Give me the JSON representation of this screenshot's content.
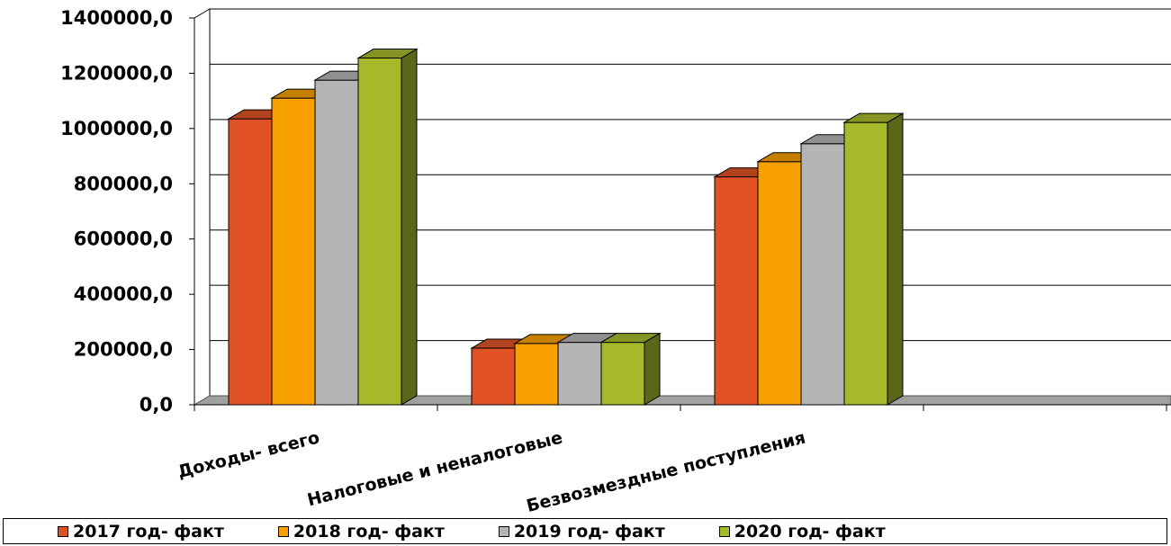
{
  "chart_data": {
    "type": "bar",
    "view": "3d-clustered-column",
    "categories": [
      "Доходы- всего",
      "Налоговые и неналоговые",
      "Безвозмездные поступления"
    ],
    "series": [
      {
        "name": "2017 год- факт",
        "values": [
          1035000,
          205000,
          825000
        ],
        "color": "#e05226"
      },
      {
        "name": "2018 год- факт",
        "values": [
          1110000,
          222000,
          880000
        ],
        "color": "#f7a000"
      },
      {
        "name": "2019 год- факт",
        "values": [
          1175000,
          226000,
          945000
        ],
        "color": "#b4b4b4"
      },
      {
        "name": "2020 год- факт",
        "values": [
          1255000,
          226000,
          1022000
        ],
        "color": "#a6b92b"
      }
    ],
    "ylim": [
      0,
      1400000
    ],
    "yticks": [
      "0,0",
      "200000,0",
      "400000,0",
      "600000,0",
      "800000,0",
      "1000000,0",
      "1200000,0",
      "1400000,0"
    ],
    "grid": true,
    "legend_position": "bottom"
  }
}
